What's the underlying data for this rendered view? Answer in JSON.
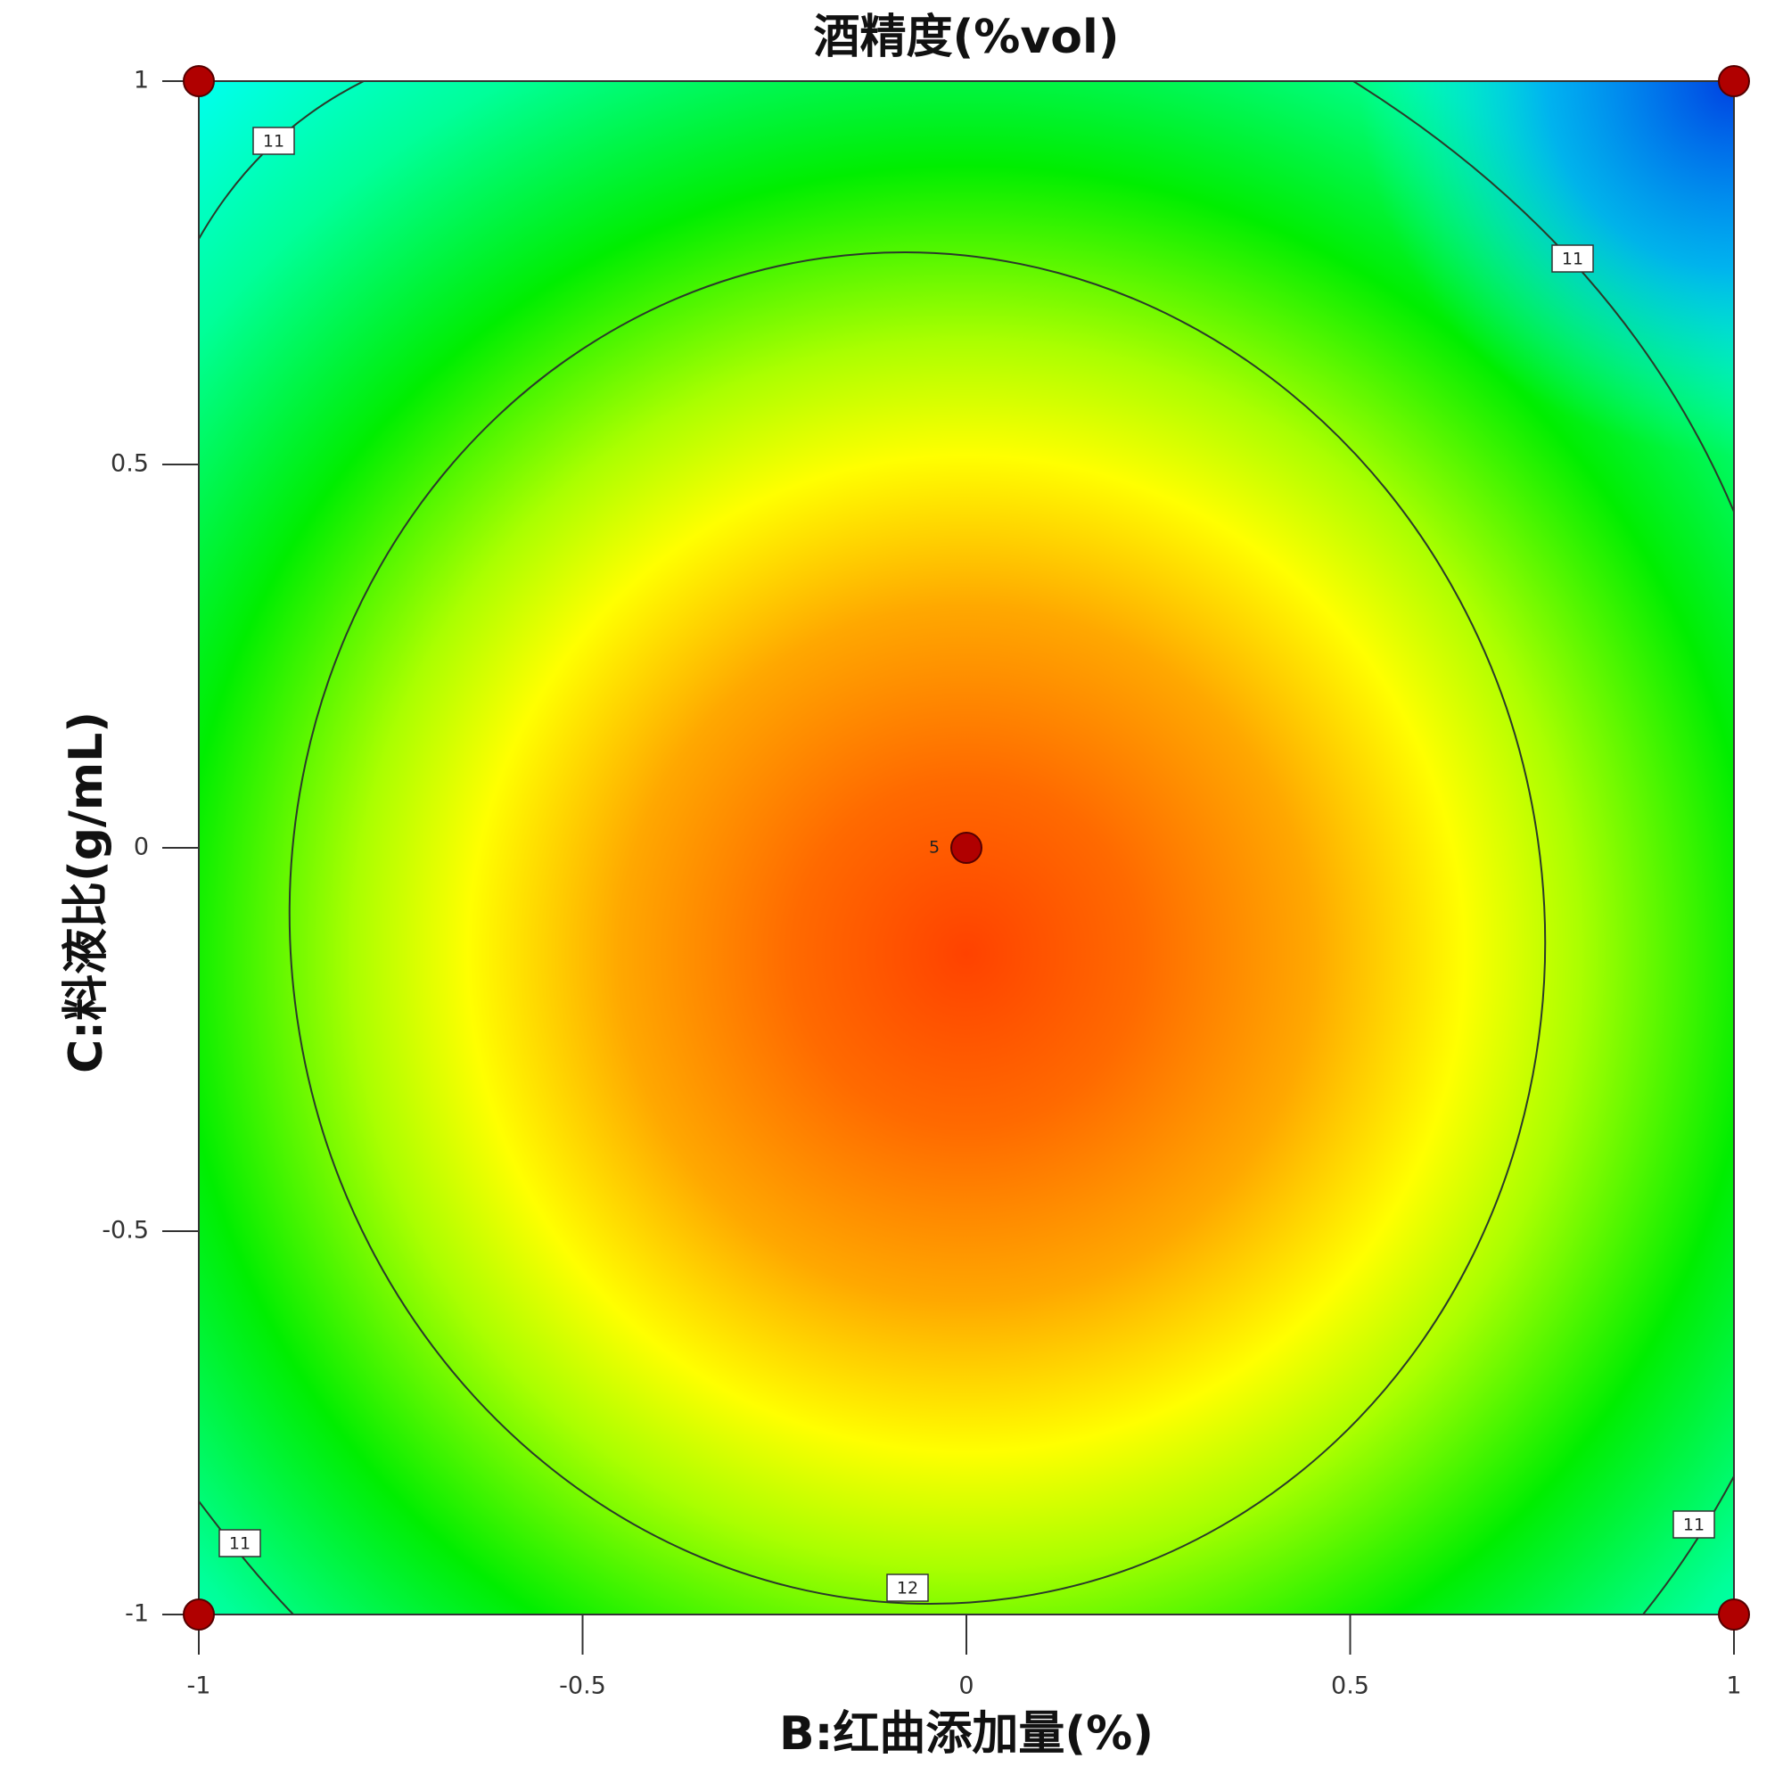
{
  "chart_data": {
    "type": "contour",
    "title": "酒精度(%vol)",
    "x_label": "B:红曲添加量(%)",
    "y_label": "C:料液比(g/mL)",
    "xlim": [
      -1,
      1
    ],
    "ylim": [
      -1,
      1
    ],
    "xticks": [
      -1,
      -0.5,
      0,
      0.5,
      1
    ],
    "yticks": [
      -1,
      -0.5,
      0,
      0.5,
      1
    ],
    "design_points": {
      "x": [
        -1,
        1,
        -1,
        1,
        0
      ],
      "y": [
        1,
        1,
        -1,
        -1,
        0
      ],
      "color": "#b00000"
    },
    "point_labels": [
      null,
      null,
      null,
      null,
      "5"
    ],
    "contour_labels": [
      11,
      11,
      11,
      11,
      12
    ]
  }
}
